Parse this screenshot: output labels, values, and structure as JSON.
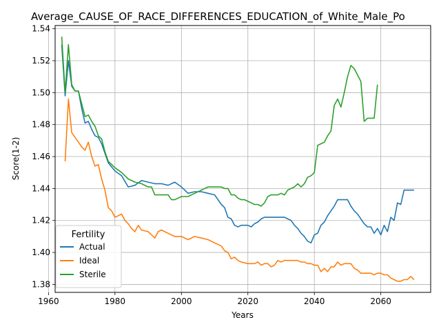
{
  "chart_data": {
    "type": "line",
    "title": "Average_CAUSE_OF_RACE_DIFFERENCES_EDUCATION_of_White_Male_Po",
    "xlabel": "Years",
    "ylabel": "Score(1-2)",
    "xlim": [
      1962,
      2075
    ],
    "ylim": [
      1.375,
      1.542
    ],
    "xticks": [
      1960,
      1980,
      2000,
      2020,
      2040,
      2060
    ],
    "yticks": [
      1.38,
      1.4,
      1.42,
      1.44,
      1.46,
      1.48,
      1.5,
      1.52,
      1.54
    ],
    "grid": true,
    "legend": {
      "title": "Fertility",
      "position": "lower-left"
    },
    "series": [
      {
        "name": "Actual",
        "color": "#1f77b4",
        "x": [
          1964,
          1965,
          1966,
          1967,
          1968,
          1969,
          1970,
          1971,
          1972,
          1973,
          1974,
          1975,
          1976,
          1977,
          1978,
          1980,
          1982,
          1984,
          1986,
          1988,
          1990,
          1992,
          1994,
          1996,
          1998,
          2000,
          2002,
          2004,
          2006,
          2008,
          2010,
          2012,
          2013,
          2014,
          2015,
          2016,
          2017,
          2018,
          2020,
          2021,
          2022,
          2023,
          2024,
          2025,
          2026,
          2027,
          2028,
          2029,
          2030,
          2031,
          2032,
          2033,
          2034,
          2035,
          2036,
          2037,
          2038,
          2039,
          2040,
          2041,
          2042,
          2043,
          2044,
          2045,
          2046,
          2047,
          2048,
          2049,
          2050,
          2051,
          2052,
          2053,
          2054,
          2055,
          2056,
          2057,
          2058,
          2059,
          2060,
          2061,
          2062,
          2063,
          2064,
          2065,
          2066,
          2067,
          2068,
          2069,
          2070
        ],
        "y": [
          1.53,
          1.498,
          1.52,
          1.504,
          1.501,
          1.501,
          1.49,
          1.481,
          1.482,
          1.477,
          1.473,
          1.472,
          1.468,
          1.462,
          1.456,
          1.451,
          1.448,
          1.441,
          1.442,
          1.445,
          1.444,
          1.443,
          1.443,
          1.442,
          1.444,
          1.441,
          1.437,
          1.438,
          1.438,
          1.437,
          1.436,
          1.43,
          1.428,
          1.422,
          1.421,
          1.417,
          1.416,
          1.417,
          1.417,
          1.416,
          1.418,
          1.419,
          1.421,
          1.422,
          1.422,
          1.422,
          1.422,
          1.422,
          1.422,
          1.422,
          1.421,
          1.42,
          1.417,
          1.415,
          1.412,
          1.41,
          1.407,
          1.406,
          1.411,
          1.412,
          1.417,
          1.419,
          1.423,
          1.426,
          1.429,
          1.433,
          1.433,
          1.433,
          1.433,
          1.429,
          1.426,
          1.424,
          1.421,
          1.418,
          1.416,
          1.416,
          1.412,
          1.415,
          1.411,
          1.417,
          1.413,
          1.422,
          1.42,
          1.431,
          1.43,
          1.439,
          1.439,
          1.439,
          1.439
        ]
      },
      {
        "name": "Ideal",
        "color": "#ff7f0e",
        "x": [
          1965,
          1966,
          1967,
          1968,
          1969,
          1970,
          1971,
          1972,
          1973,
          1974,
          1975,
          1976,
          1977,
          1978,
          1979,
          1980,
          1981,
          1982,
          1983,
          1984,
          1985,
          1986,
          1987,
          1988,
          1990,
          1991,
          1992,
          1993,
          1994,
          1996,
          1998,
          2000,
          2002,
          2004,
          2006,
          2008,
          2010,
          2012,
          2013,
          2014,
          2015,
          2016,
          2017,
          2018,
          2020,
          2022,
          2023,
          2024,
          2025,
          2026,
          2027,
          2028,
          2029,
          2030,
          2031,
          2032,
          2033,
          2034,
          2035,
          2036,
          2037,
          2038,
          2039,
          2040,
          2041,
          2042,
          2043,
          2044,
          2045,
          2046,
          2047,
          2048,
          2049,
          2050,
          2051,
          2052,
          2053,
          2054,
          2055,
          2056,
          2057,
          2058,
          2059,
          2060,
          2061,
          2062,
          2063,
          2064,
          2065,
          2066,
          2067,
          2068,
          2069,
          2070
        ],
        "y": [
          1.457,
          1.496,
          1.475,
          1.472,
          1.469,
          1.466,
          1.464,
          1.469,
          1.46,
          1.454,
          1.455,
          1.446,
          1.439,
          1.428,
          1.426,
          1.422,
          1.423,
          1.424,
          1.42,
          1.418,
          1.415,
          1.413,
          1.417,
          1.414,
          1.413,
          1.411,
          1.409,
          1.413,
          1.414,
          1.412,
          1.41,
          1.41,
          1.408,
          1.41,
          1.409,
          1.408,
          1.406,
          1.404,
          1.401,
          1.4,
          1.396,
          1.397,
          1.395,
          1.394,
          1.393,
          1.393,
          1.394,
          1.392,
          1.393,
          1.393,
          1.391,
          1.392,
          1.395,
          1.394,
          1.395,
          1.395,
          1.395,
          1.395,
          1.395,
          1.394,
          1.394,
          1.393,
          1.393,
          1.392,
          1.392,
          1.388,
          1.39,
          1.388,
          1.391,
          1.391,
          1.394,
          1.392,
          1.393,
          1.393,
          1.393,
          1.39,
          1.389,
          1.387,
          1.387,
          1.387,
          1.387,
          1.386,
          1.387,
          1.387,
          1.386,
          1.386,
          1.384,
          1.383,
          1.382,
          1.382,
          1.383,
          1.383,
          1.385,
          1.383
        ]
      },
      {
        "name": "Sterile",
        "color": "#2ca02c",
        "x": [
          1964,
          1965,
          1966,
          1967,
          1968,
          1969,
          1970,
          1971,
          1972,
          1973,
          1974,
          1975,
          1976,
          1977,
          1978,
          1980,
          1982,
          1984,
          1986,
          1988,
          1990,
          1991,
          1992,
          1993,
          1994,
          1996,
          1997,
          1998,
          1999,
          2000,
          2002,
          2004,
          2006,
          2008,
          2010,
          2012,
          2013,
          2014,
          2015,
          2016,
          2017,
          2018,
          2019,
          2020,
          2021,
          2022,
          2023,
          2024,
          2025,
          2026,
          2027,
          2028,
          2029,
          2030,
          2031,
          2032,
          2033,
          2034,
          2035,
          2036,
          2037,
          2038,
          2039,
          2040,
          2041,
          2042,
          2043,
          2044,
          2045,
          2046,
          2047,
          2048,
          2049,
          2050,
          2051,
          2052,
          2053,
          2054,
          2055,
          2056,
          2057,
          2058,
          2059
        ],
        "y": [
          1.535,
          1.5,
          1.53,
          1.505,
          1.501,
          1.501,
          1.493,
          1.485,
          1.486,
          1.482,
          1.479,
          1.473,
          1.471,
          1.463,
          1.457,
          1.453,
          1.45,
          1.446,
          1.444,
          1.443,
          1.441,
          1.441,
          1.436,
          1.436,
          1.436,
          1.436,
          1.433,
          1.433,
          1.434,
          1.435,
          1.435,
          1.437,
          1.439,
          1.441,
          1.441,
          1.441,
          1.44,
          1.44,
          1.436,
          1.436,
          1.434,
          1.433,
          1.433,
          1.432,
          1.431,
          1.43,
          1.43,
          1.429,
          1.431,
          1.435,
          1.436,
          1.436,
          1.436,
          1.437,
          1.436,
          1.439,
          1.44,
          1.441,
          1.443,
          1.441,
          1.443,
          1.447,
          1.448,
          1.45,
          1.467,
          1.468,
          1.469,
          1.473,
          1.476,
          1.492,
          1.496,
          1.491,
          1.5,
          1.51,
          1.517,
          1.515,
          1.511,
          1.507,
          1.482,
          1.484,
          1.484,
          1.484,
          1.505
        ]
      }
    ]
  }
}
